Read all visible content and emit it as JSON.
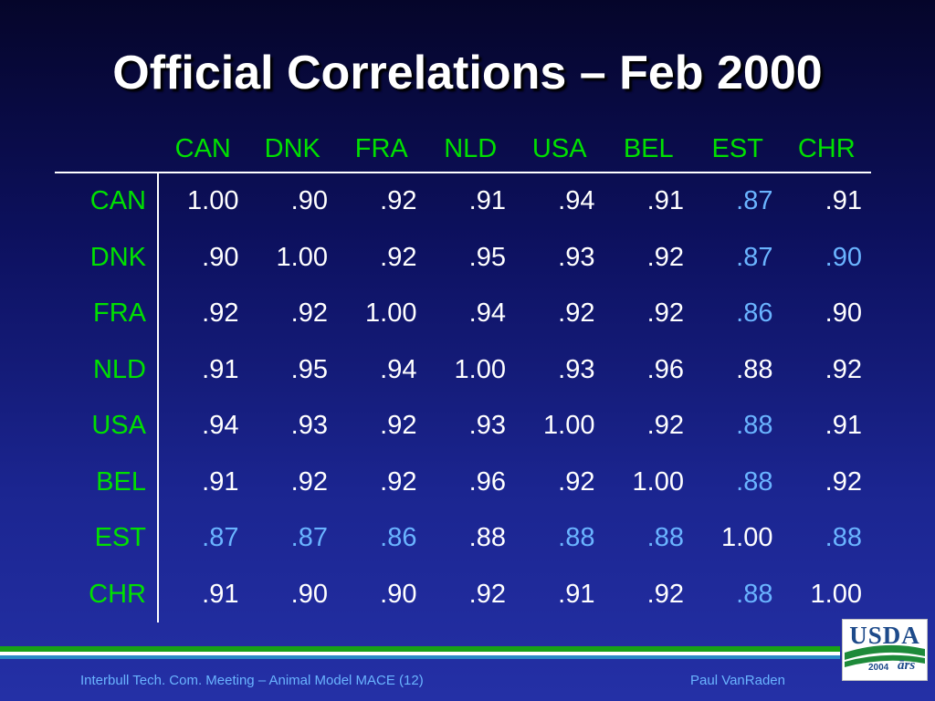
{
  "slide": {
    "title": "Official Correlations – Feb 2000",
    "footer_left": "Interbull Tech. Com. Meeting – Animal Model MACE (12)",
    "footer_right": "Paul VanRaden"
  },
  "logo": {
    "text": "USDA",
    "year": "2004",
    "agency_mark": "ārs"
  },
  "colors": {
    "header": "#00e000",
    "value": "#ffffff",
    "highlight": "#6ab4ff"
  },
  "table": {
    "columns": [
      "CAN",
      "DNK",
      "FRA",
      "NLD",
      "USA",
      "BEL",
      "EST",
      "CHR"
    ],
    "rows": [
      {
        "label": "CAN",
        "cells": [
          {
            "v": "1.00",
            "hl": false
          },
          {
            "v": ".90",
            "hl": false
          },
          {
            "v": ".92",
            "hl": false
          },
          {
            "v": ".91",
            "hl": false
          },
          {
            "v": ".94",
            "hl": false
          },
          {
            "v": ".91",
            "hl": false
          },
          {
            "v": ".87",
            "hl": true
          },
          {
            "v": ".91",
            "hl": false
          }
        ]
      },
      {
        "label": "DNK",
        "cells": [
          {
            "v": ".90",
            "hl": false
          },
          {
            "v": "1.00",
            "hl": false
          },
          {
            "v": ".92",
            "hl": false
          },
          {
            "v": ".95",
            "hl": false
          },
          {
            "v": ".93",
            "hl": false
          },
          {
            "v": ".92",
            "hl": false
          },
          {
            "v": ".87",
            "hl": true
          },
          {
            "v": ".90",
            "hl": true
          }
        ]
      },
      {
        "label": "FRA",
        "cells": [
          {
            "v": ".92",
            "hl": false
          },
          {
            "v": ".92",
            "hl": false
          },
          {
            "v": "1.00",
            "hl": false
          },
          {
            "v": ".94",
            "hl": false
          },
          {
            "v": ".92",
            "hl": false
          },
          {
            "v": ".92",
            "hl": false
          },
          {
            "v": ".86",
            "hl": true
          },
          {
            "v": ".90",
            "hl": false
          }
        ]
      },
      {
        "label": "NLD",
        "cells": [
          {
            "v": ".91",
            "hl": false
          },
          {
            "v": ".95",
            "hl": false
          },
          {
            "v": ".94",
            "hl": false
          },
          {
            "v": "1.00",
            "hl": false
          },
          {
            "v": ".93",
            "hl": false
          },
          {
            "v": ".96",
            "hl": false
          },
          {
            "v": ".88",
            "hl": false
          },
          {
            "v": ".92",
            "hl": false
          }
        ]
      },
      {
        "label": "USA",
        "cells": [
          {
            "v": ".94",
            "hl": false
          },
          {
            "v": ".93",
            "hl": false
          },
          {
            "v": ".92",
            "hl": false
          },
          {
            "v": ".93",
            "hl": false
          },
          {
            "v": "1.00",
            "hl": false
          },
          {
            "v": ".92",
            "hl": false
          },
          {
            "v": ".88",
            "hl": true
          },
          {
            "v": ".91",
            "hl": false
          }
        ]
      },
      {
        "label": "BEL",
        "cells": [
          {
            "v": ".91",
            "hl": false
          },
          {
            "v": ".92",
            "hl": false
          },
          {
            "v": ".92",
            "hl": false
          },
          {
            "v": ".96",
            "hl": false
          },
          {
            "v": ".92",
            "hl": false
          },
          {
            "v": "1.00",
            "hl": false
          },
          {
            "v": ".88",
            "hl": true
          },
          {
            "v": ".92",
            "hl": false
          }
        ]
      },
      {
        "label": "EST",
        "cells": [
          {
            "v": ".87",
            "hl": true
          },
          {
            "v": ".87",
            "hl": true
          },
          {
            "v": ".86",
            "hl": true
          },
          {
            "v": ".88",
            "hl": false
          },
          {
            "v": ".88",
            "hl": true
          },
          {
            "v": ".88",
            "hl": true
          },
          {
            "v": "1.00",
            "hl": false
          },
          {
            "v": ".88",
            "hl": true
          }
        ]
      },
      {
        "label": "CHR",
        "cells": [
          {
            "v": ".91",
            "hl": false
          },
          {
            "v": ".90",
            "hl": false
          },
          {
            "v": ".90",
            "hl": false
          },
          {
            "v": ".92",
            "hl": false
          },
          {
            "v": ".91",
            "hl": false
          },
          {
            "v": ".92",
            "hl": false
          },
          {
            "v": ".88",
            "hl": true
          },
          {
            "v": "1.00",
            "hl": false
          }
        ]
      }
    ]
  }
}
